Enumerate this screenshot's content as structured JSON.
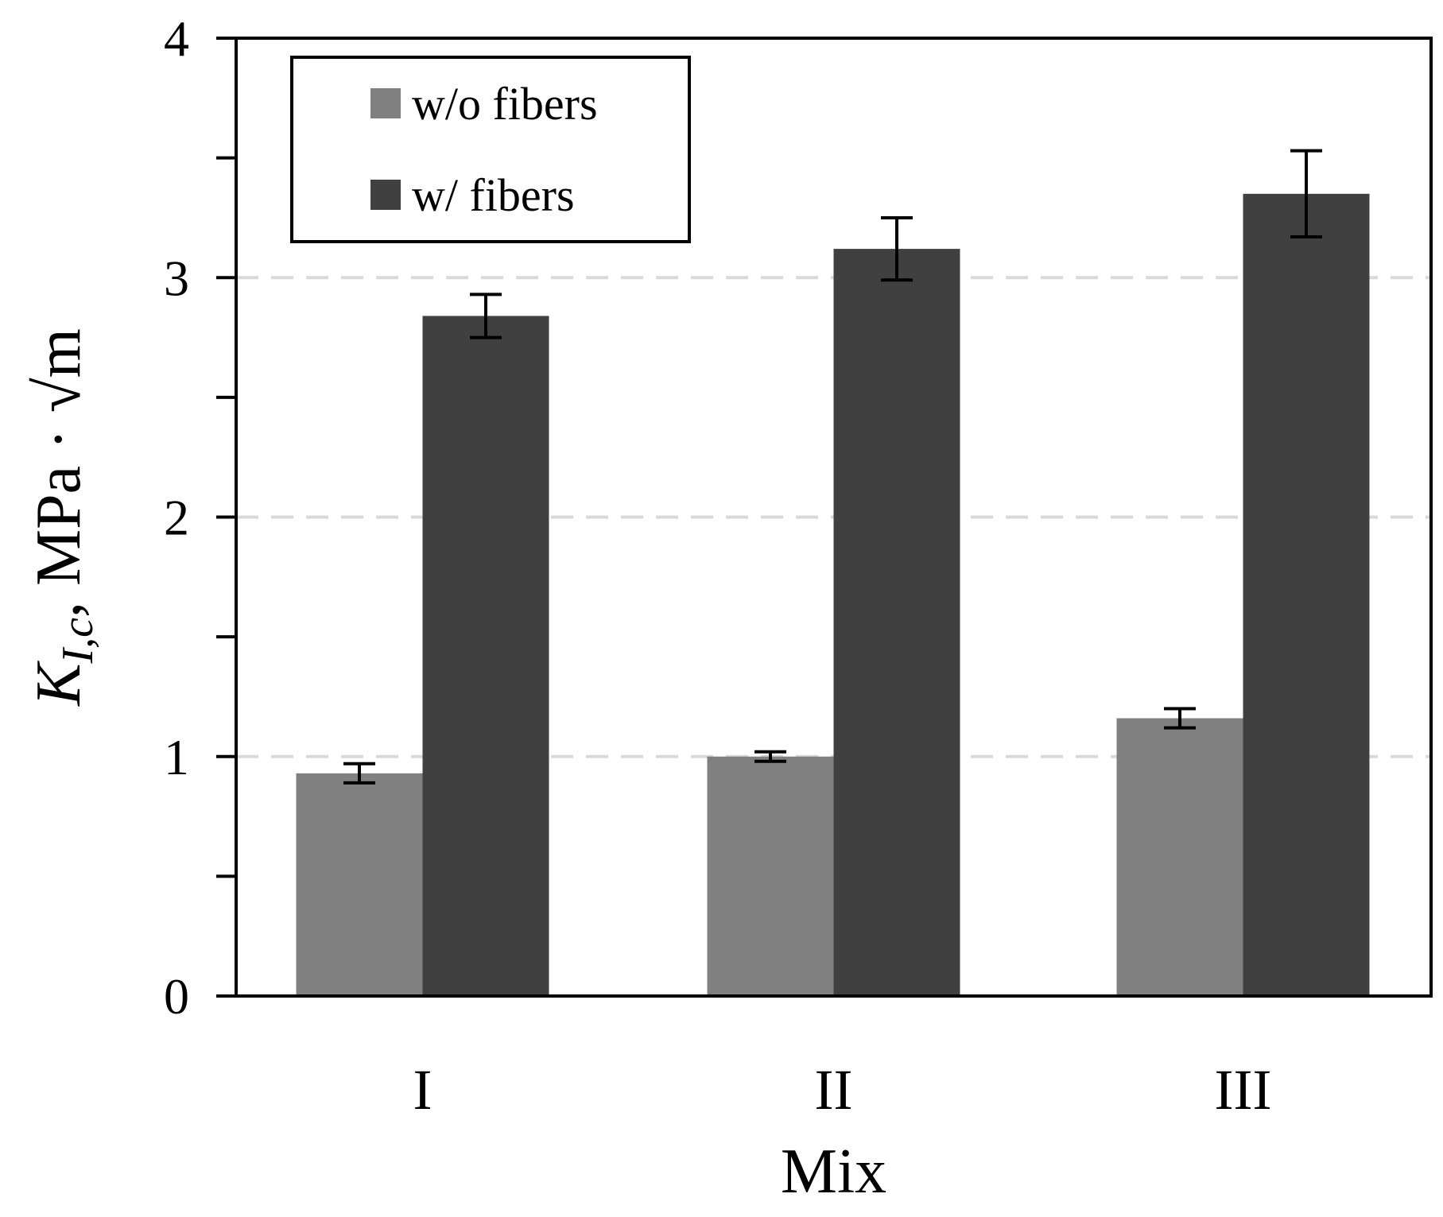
{
  "chart_data": {
    "type": "bar",
    "title": "",
    "xlabel": "Mix",
    "ylabel": {
      "symbol": "K",
      "subscript": "I,c",
      "units": "MPa · √m"
    },
    "categories": [
      "I",
      "II",
      "III"
    ],
    "ylim": [
      0,
      4
    ],
    "yticks": [
      0,
      1,
      2,
      3,
      4
    ],
    "yticks_minor": [
      0.5,
      1.5,
      2.5,
      3.5
    ],
    "grid": "horizontal dashed at 1, 2, 3",
    "legend_position": "top-left",
    "series": [
      {
        "name": "w/o fibers",
        "color": "#808080",
        "values": [
          0.93,
          1.0,
          1.16
        ],
        "error": [
          0.04,
          0.02,
          0.04
        ]
      },
      {
        "name": "w/ fibers",
        "color": "#404040",
        "values": [
          2.84,
          3.12,
          3.35
        ],
        "error": [
          0.09,
          0.13,
          0.18
        ]
      }
    ]
  }
}
